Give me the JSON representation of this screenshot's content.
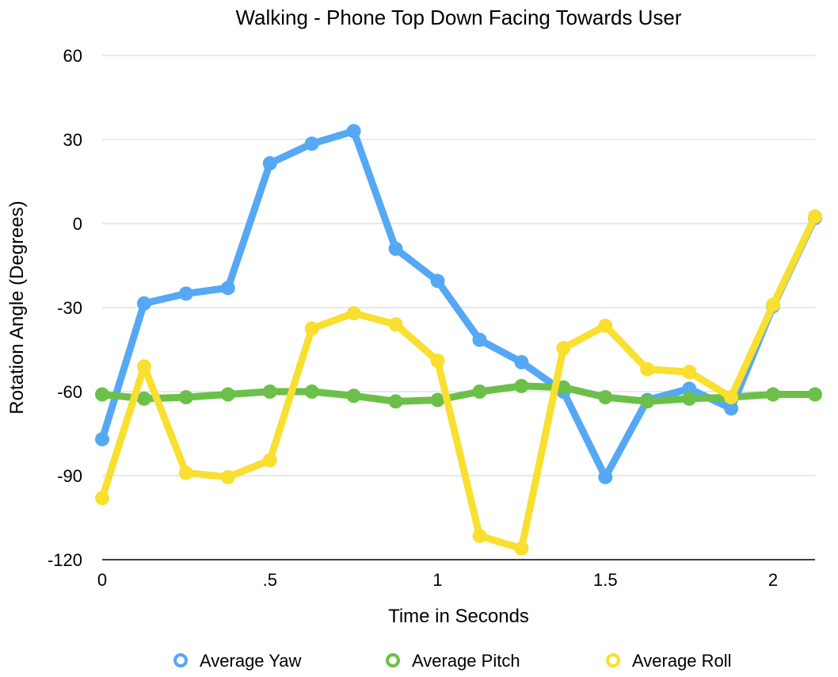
{
  "chart_data": {
    "type": "line",
    "title": "Walking - Phone Top Down Facing Towards User",
    "xlabel": "Time in Seconds",
    "ylabel": "Rotation Angle (Degrees)",
    "xlim": [
      0,
      2.125
    ],
    "ylim": [
      -120,
      60
    ],
    "x_ticks": [
      0,
      0.5,
      1,
      1.5,
      2
    ],
    "x_tick_labels": [
      "0",
      ".5",
      "1",
      "1.5",
      "2"
    ],
    "y_ticks": [
      60,
      30,
      0,
      -30,
      -60,
      -90,
      -120
    ],
    "y_tick_labels": [
      "60",
      "30",
      "0",
      "-30",
      "-60",
      "-90",
      "-120"
    ],
    "grid": "horizontal",
    "legend_position": "bottom",
    "x": [
      0,
      0.125,
      0.25,
      0.375,
      0.5,
      0.625,
      0.75,
      0.875,
      1,
      1.125,
      1.25,
      1.375,
      1.5,
      1.625,
      1.75,
      1.875,
      2,
      2.125
    ],
    "series": [
      {
        "name": "Average Yaw",
        "color": "#55a8f4",
        "values": [
          -77,
          -28.5,
          -25,
          -23,
          21.5,
          28.5,
          33,
          -9,
          -20.5,
          -41.5,
          -49.5,
          -60,
          -90.5,
          -63,
          -59,
          -66,
          -29.5,
          2
        ]
      },
      {
        "name": "Average Pitch",
        "color": "#6cc04a",
        "values": [
          -61,
          -62.5,
          -62,
          -61,
          -60,
          -60,
          -61.5,
          -63.5,
          -63,
          -60,
          -58,
          -58.5,
          -62,
          -63.5,
          -62.5,
          -62,
          -61,
          -61
        ]
      },
      {
        "name": "Average Roll",
        "color": "#f9df2f",
        "values": [
          -98,
          -51,
          -89,
          -90.5,
          -84.5,
          -37.5,
          -32,
          -36,
          -49,
          -111.5,
          -116,
          -44.5,
          -36.5,
          -52,
          -53,
          -62,
          -29,
          2.5
        ]
      }
    ]
  }
}
